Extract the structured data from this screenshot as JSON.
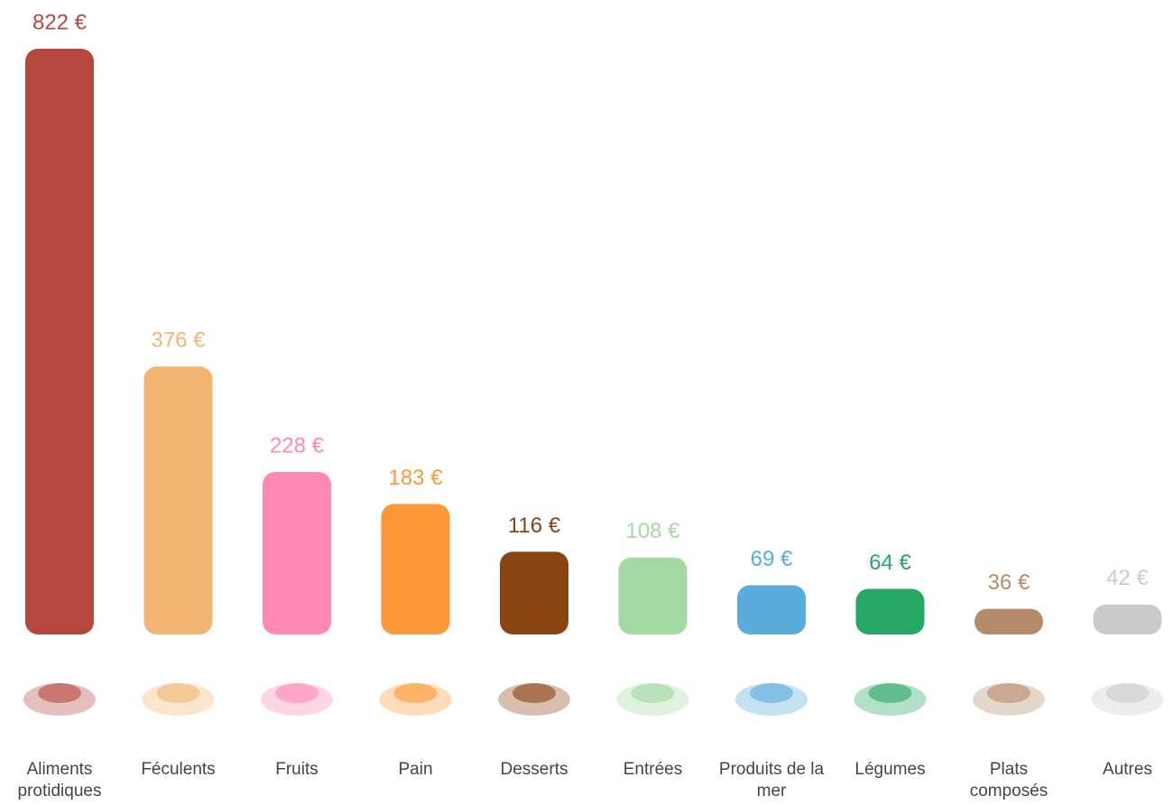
{
  "chart_data": {
    "type": "bar",
    "categories": [
      "Aliments protidiques",
      "Féculents",
      "Fruits",
      "Pain",
      "Desserts",
      "Entrées",
      "Produits de la mer",
      "Légumes",
      "Plats composés",
      "Autres"
    ],
    "values": [
      822,
      376,
      228,
      183,
      116,
      108,
      69,
      64,
      36,
      42
    ],
    "value_labels": [
      "822 €",
      "376 €",
      "228 €",
      "183 €",
      "116 €",
      "108 €",
      "69 €",
      "64 €",
      "36 €",
      "42 €"
    ],
    "colors": [
      "#b5473f",
      "#f3b574",
      "#ff88b5",
      "#fd9836",
      "#8b4513",
      "#a4d9a3",
      "#5aacdc",
      "#26a763",
      "#b68b6a",
      "#cbcbcb"
    ]
  }
}
